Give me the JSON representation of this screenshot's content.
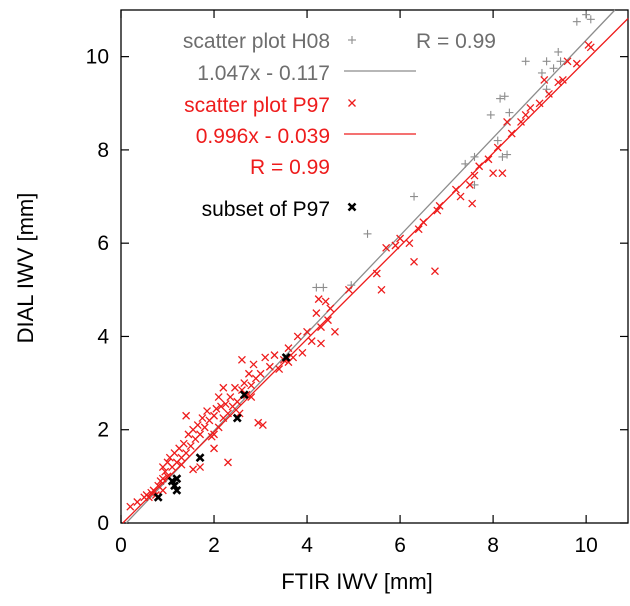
{
  "chart_data": {
    "type": "scatter",
    "title": "",
    "xlabel": "FTIR IWV [mm]",
    "ylabel": "DIAL IWV [mm]",
    "xlim": [
      0,
      10.9
    ],
    "ylim": [
      0,
      11
    ],
    "xticks": [
      "0",
      "2",
      "4",
      "6",
      "8",
      "10"
    ],
    "yticks": [
      "0",
      "2",
      "4",
      "6",
      "8",
      "10"
    ],
    "grid": false,
    "legend_position": "top-left",
    "series": [
      {
        "name": "scatter plot H08",
        "marker": "plus",
        "color": "#8c8c8c",
        "points": [
          [
            4.2,
            5.05
          ],
          [
            4.35,
            5.05
          ],
          [
            5.3,
            6.2
          ],
          [
            6.3,
            7.0
          ],
          [
            7.6,
            7.85
          ],
          [
            7.4,
            7.7
          ],
          [
            8.15,
            9.1
          ],
          [
            8.25,
            9.15
          ],
          [
            8.35,
            8.8
          ],
          [
            8.2,
            7.85
          ],
          [
            8.3,
            7.9
          ],
          [
            8.7,
            9.9
          ],
          [
            9.05,
            9.65
          ],
          [
            9.15,
            9.9
          ],
          [
            9.3,
            9.75
          ],
          [
            9.4,
            10.1
          ],
          [
            9.45,
            9.9
          ],
          [
            9.8,
            10.75
          ],
          [
            10.0,
            10.9
          ],
          [
            10.1,
            10.8
          ],
          [
            9.15,
            9.3
          ],
          [
            8.1,
            8.2
          ],
          [
            7.95,
            8.75
          ],
          [
            7.6,
            7.25
          ],
          [
            4.95,
            5.1
          ]
        ]
      },
      {
        "name": "scatter plot P97",
        "marker": "x",
        "color": "#ee1c1c",
        "fit_label": "0.996x - 0.039",
        "r_label": "R = 0.99",
        "points": [
          [
            0.2,
            0.35
          ],
          [
            0.35,
            0.45
          ],
          [
            0.5,
            0.55
          ],
          [
            0.55,
            0.6
          ],
          [
            0.6,
            0.55
          ],
          [
            0.65,
            0.65
          ],
          [
            0.7,
            0.7
          ],
          [
            0.75,
            0.6
          ],
          [
            0.8,
            0.8
          ],
          [
            0.85,
            0.9
          ],
          [
            0.9,
            0.95
          ],
          [
            0.9,
            1.2
          ],
          [
            0.95,
            1.1
          ],
          [
            1.0,
            1.3
          ],
          [
            1.0,
            1.0
          ],
          [
            1.05,
            1.4
          ],
          [
            1.1,
            1.2
          ],
          [
            1.15,
            1.5
          ],
          [
            1.2,
            1.3
          ],
          [
            1.25,
            1.6
          ],
          [
            1.3,
            1.4
          ],
          [
            1.35,
            1.7
          ],
          [
            1.4,
            1.5
          ],
          [
            1.45,
            1.9
          ],
          [
            1.5,
            1.65
          ],
          [
            1.55,
            2.0
          ],
          [
            1.6,
            1.8
          ],
          [
            1.65,
            2.1
          ],
          [
            1.7,
            1.9
          ],
          [
            1.75,
            2.25
          ],
          [
            1.8,
            2.05
          ],
          [
            1.85,
            2.4
          ],
          [
            1.9,
            2.2
          ],
          [
            1.95,
            1.85
          ],
          [
            2.0,
            2.3
          ],
          [
            2.05,
            2.45
          ],
          [
            2.1,
            2.05
          ],
          [
            2.15,
            2.5
          ],
          [
            2.2,
            2.25
          ],
          [
            2.25,
            2.55
          ],
          [
            2.3,
            2.35
          ],
          [
            2.35,
            2.7
          ],
          [
            2.4,
            2.5
          ],
          [
            2.45,
            2.9
          ],
          [
            2.5,
            2.6
          ],
          [
            2.55,
            2.35
          ],
          [
            2.6,
            2.85
          ],
          [
            2.65,
            3.0
          ],
          [
            2.7,
            2.75
          ],
          [
            2.75,
            3.2
          ],
          [
            2.8,
            2.95
          ],
          [
            2.85,
            3.4
          ],
          [
            2.9,
            3.1
          ],
          [
            2.95,
            2.15
          ],
          [
            3.0,
            3.2
          ],
          [
            3.05,
            2.1
          ],
          [
            3.1,
            3.55
          ],
          [
            3.2,
            3.35
          ],
          [
            3.3,
            3.6
          ],
          [
            3.4,
            3.3
          ],
          [
            3.5,
            3.5
          ],
          [
            3.6,
            3.75
          ],
          [
            3.7,
            3.55
          ],
          [
            3.8,
            4.0
          ],
          [
            3.9,
            3.65
          ],
          [
            4.0,
            4.1
          ],
          [
            4.1,
            3.9
          ],
          [
            4.2,
            4.5
          ],
          [
            4.25,
            4.8
          ],
          [
            4.3,
            4.2
          ],
          [
            4.4,
            4.75
          ],
          [
            4.45,
            4.35
          ],
          [
            4.5,
            4.6
          ],
          [
            4.6,
            4.1
          ],
          [
            4.9,
            5.0
          ],
          [
            5.5,
            5.35
          ],
          [
            5.6,
            5.0
          ],
          [
            5.7,
            5.9
          ],
          [
            5.9,
            5.95
          ],
          [
            6.0,
            6.1
          ],
          [
            6.2,
            6.0
          ],
          [
            6.3,
            5.6
          ],
          [
            6.4,
            6.3
          ],
          [
            6.5,
            6.45
          ],
          [
            6.75,
            5.4
          ],
          [
            6.8,
            6.7
          ],
          [
            6.85,
            6.8
          ],
          [
            7.2,
            7.15
          ],
          [
            7.3,
            7.0
          ],
          [
            7.5,
            7.25
          ],
          [
            7.55,
            6.85
          ],
          [
            7.6,
            7.45
          ],
          [
            7.7,
            7.65
          ],
          [
            7.9,
            7.8
          ],
          [
            8.0,
            7.5
          ],
          [
            8.1,
            8.05
          ],
          [
            8.2,
            7.5
          ],
          [
            8.3,
            8.6
          ],
          [
            8.4,
            8.35
          ],
          [
            8.6,
            8.6
          ],
          [
            8.7,
            8.75
          ],
          [
            8.8,
            8.9
          ],
          [
            9.0,
            9.0
          ],
          [
            9.1,
            9.5
          ],
          [
            9.2,
            9.2
          ],
          [
            9.4,
            9.45
          ],
          [
            9.5,
            9.5
          ],
          [
            9.6,
            9.9
          ],
          [
            9.8,
            9.85
          ],
          [
            10.05,
            10.25
          ],
          [
            10.1,
            10.2
          ],
          [
            1.7,
            1.2
          ],
          [
            1.55,
            1.15
          ],
          [
            2.0,
            1.6
          ],
          [
            2.3,
            1.3
          ],
          [
            2.1,
            2.7
          ],
          [
            1.2,
            0.95
          ],
          [
            0.9,
            0.7
          ],
          [
            2.6,
            3.5
          ],
          [
            2.8,
            2.7
          ],
          [
            1.4,
            2.3
          ],
          [
            2.2,
            2.9
          ],
          [
            3.6,
            3.45
          ],
          [
            4.3,
            3.85
          ],
          [
            1.3,
            1.25
          ],
          [
            2.0,
            1.9
          ]
        ]
      },
      {
        "name": "subset of P97",
        "marker": "x-bold",
        "color": "#000000",
        "points": [
          [
            0.8,
            0.55
          ],
          [
            1.1,
            0.9
          ],
          [
            1.15,
            0.8
          ],
          [
            1.2,
            0.95
          ],
          [
            1.2,
            0.7
          ],
          [
            1.7,
            1.4
          ],
          [
            2.5,
            2.25
          ],
          [
            2.65,
            2.75
          ],
          [
            3.55,
            3.55
          ]
        ]
      }
    ],
    "fits": [
      {
        "name": "1.047x - 0.117",
        "slope": 1.047,
        "intercept": -0.117,
        "color": "#8c8c8c"
      },
      {
        "name": "0.996x - 0.039",
        "slope": 0.996,
        "intercept": -0.039,
        "color": "#ee1c1c"
      }
    ],
    "annotations": {
      "r_h08": "R = 0.99",
      "r_p97": "R = 0.99"
    }
  }
}
